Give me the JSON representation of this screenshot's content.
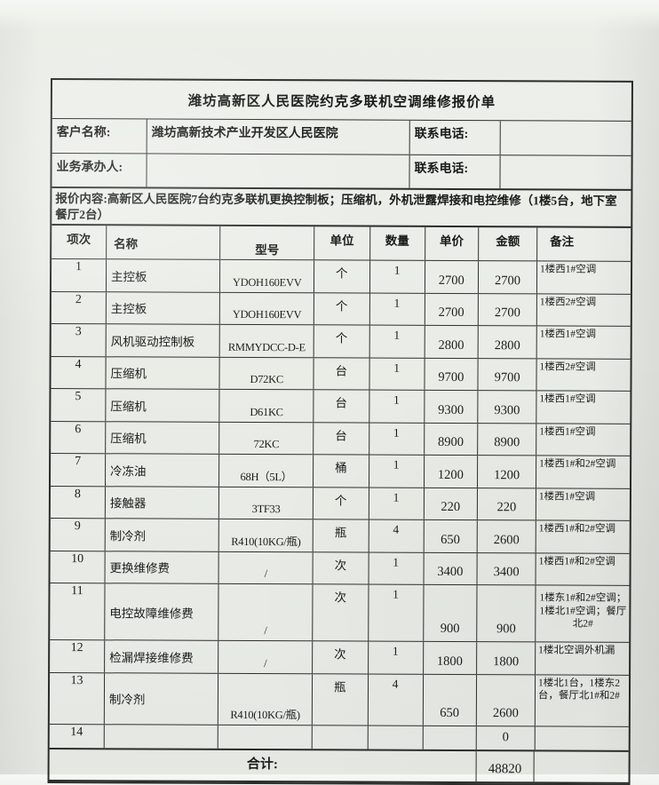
{
  "title": "潍坊高新区人民医院约克多联机空调维修报价单",
  "info_rows": [
    {
      "label": "客户名称:",
      "value": "潍坊高新技术产业开发区人民医院",
      "label2": "联系电话:",
      "value2": ""
    },
    {
      "label": "业务承办人:",
      "value": "",
      "label2": "联系电话:",
      "value2": ""
    }
  ],
  "quote_content": "报价内容:高新区人民医院7台约克多联机更换控制板；压缩机，外机泄露焊接和电控维修（1楼5台，地下室餐厅2台）",
  "table": {
    "columns": [
      "项次",
      "名称",
      "型号",
      "单位",
      "数量",
      "单价",
      "金额",
      "备注"
    ],
    "rows": [
      {
        "no": "1",
        "name": "主控板",
        "model": "YDOH160EVV",
        "unit": "个",
        "qty": "1",
        "price": "2700",
        "amount": "2700",
        "remark": "1楼西1#空调"
      },
      {
        "no": "2",
        "name": "主控板",
        "model": "YDOH160EVV",
        "unit": "个",
        "qty": "1",
        "price": "2700",
        "amount": "2700",
        "remark": "1楼西2#空调"
      },
      {
        "no": "3",
        "name": "风机驱动控制板",
        "model": "RMMYDCC-D-E",
        "unit": "个",
        "qty": "1",
        "price": "2800",
        "amount": "2800",
        "remark": "1楼西1#空调"
      },
      {
        "no": "4",
        "name": "压缩机",
        "model": "D72KC",
        "unit": "台",
        "qty": "1",
        "price": "9700",
        "amount": "9700",
        "remark": "1楼西2#空调"
      },
      {
        "no": "5",
        "name": "压缩机",
        "model": "D61KC",
        "unit": "台",
        "qty": "1",
        "price": "9300",
        "amount": "9300",
        "remark": "1楼西1#空调"
      },
      {
        "no": "6",
        "name": "压缩机",
        "model": "72KC",
        "unit": "台",
        "qty": "1",
        "price": "8900",
        "amount": "8900",
        "remark": "1楼西1#空调"
      },
      {
        "no": "7",
        "name": "冷冻油",
        "model": "68H（5L）",
        "unit": "桶",
        "qty": "1",
        "price": "1200",
        "amount": "1200",
        "remark": "1楼西1#和2#空调"
      },
      {
        "no": "8",
        "name": "接触器",
        "model": "3TF33",
        "unit": "个",
        "qty": "1",
        "price": "220",
        "amount": "220",
        "remark": "1楼西1#空调"
      },
      {
        "no": "9",
        "name": "制冷剂",
        "model": "R410(10KG/瓶)",
        "unit": "瓶",
        "qty": "4",
        "price": "650",
        "amount": "2600",
        "remark": "1楼西1#和2#空调"
      },
      {
        "no": "10",
        "name": "更换维修费",
        "model": "/",
        "unit": "次",
        "qty": "1",
        "price": "3400",
        "amount": "3400",
        "remark": "1楼西1#和2#空调"
      },
      {
        "no": "11",
        "name": "电控故障维修费",
        "model": "/",
        "unit": "次",
        "qty": "1",
        "price": "900",
        "amount": "900",
        "remark": "1楼东1#和2#空调；1楼北1#空调；餐厅北2#"
      },
      {
        "no": "12",
        "name": "检漏焊接维修费",
        "model": "/",
        "unit": "次",
        "qty": "1",
        "price": "1800",
        "amount": "1800",
        "remark": "1楼北空调外机漏"
      },
      {
        "no": "13",
        "name": "制冷剂",
        "model": "R410(10KG/瓶)",
        "unit": "瓶",
        "qty": "4",
        "price": "650",
        "amount": "2600",
        "remark": "1楼北1台，1楼东2台，餐厅北1#和2#"
      },
      {
        "no": "14",
        "name": "",
        "model": "",
        "unit": "",
        "qty": "",
        "price": "",
        "amount": "0",
        "remark": ""
      }
    ],
    "total_label": "合计:",
    "total_amount": "48820"
  }
}
